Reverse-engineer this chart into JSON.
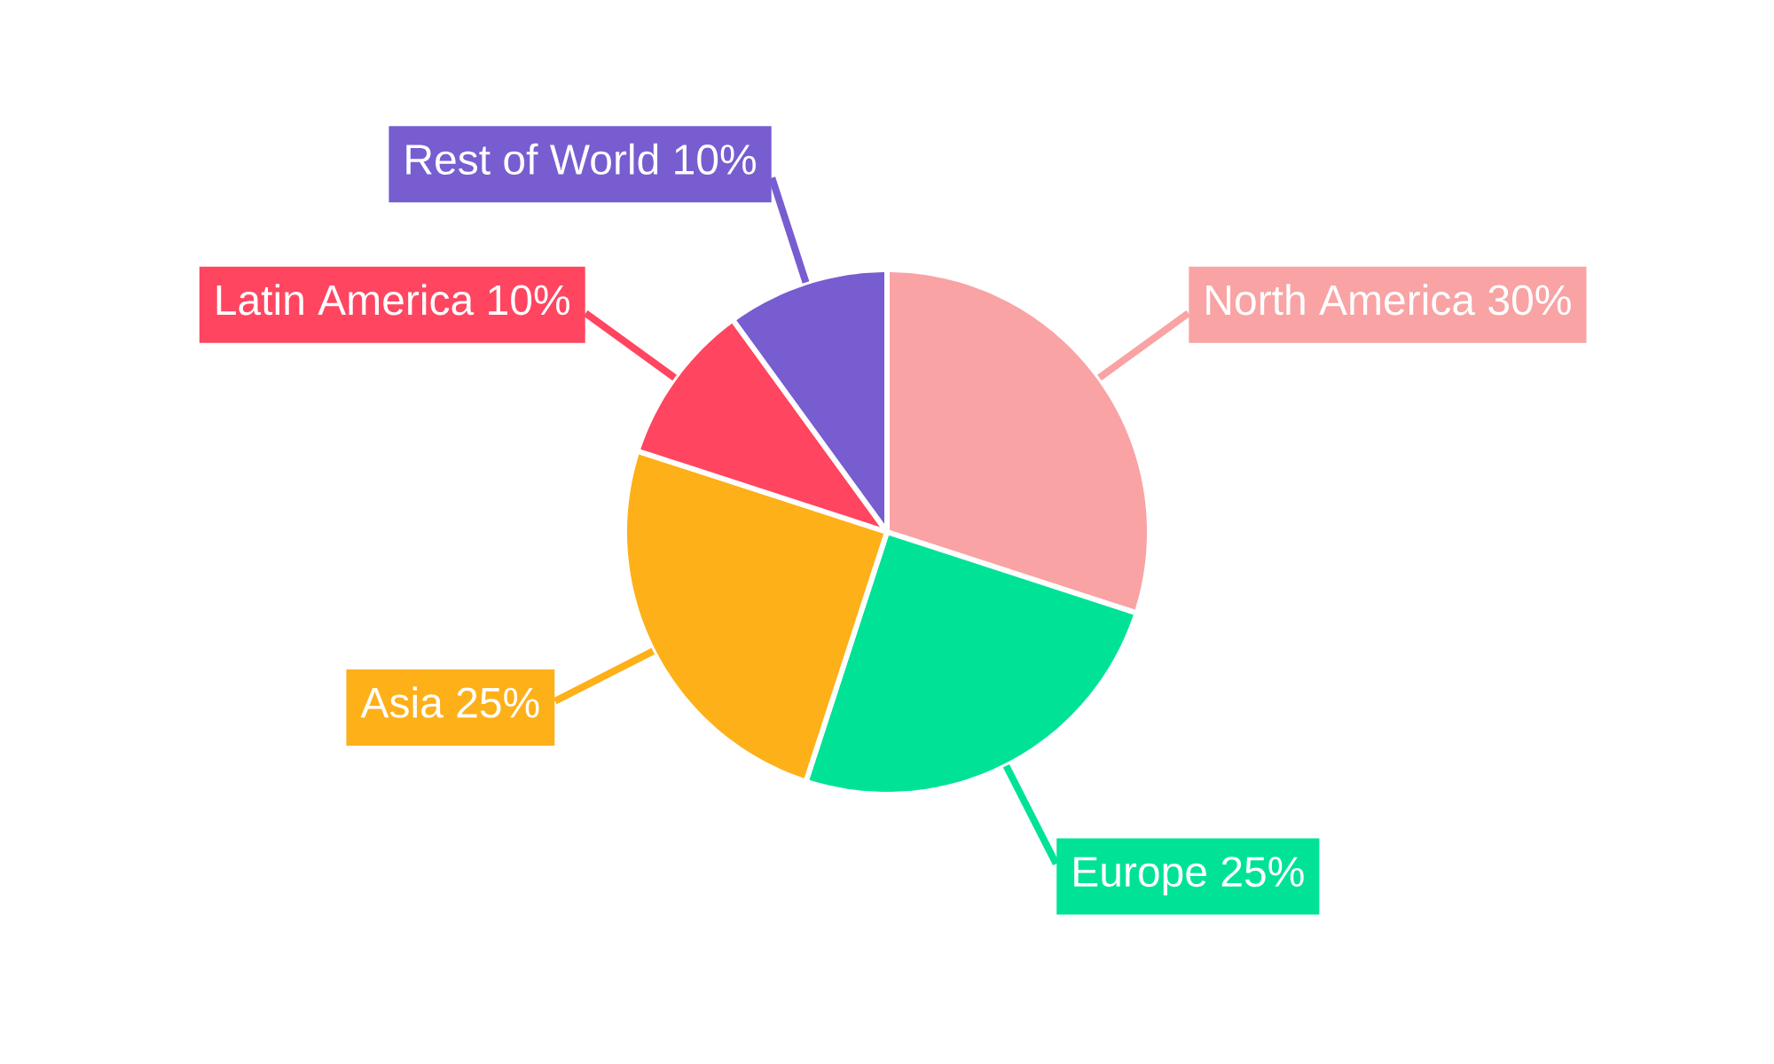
{
  "chart_data": {
    "type": "pie",
    "categories": [
      "North America",
      "Europe",
      "Asia",
      "Latin America",
      "Rest of World"
    ],
    "values": [
      30,
      25,
      25,
      10,
      10
    ],
    "colors": [
      "#f9a3a4",
      "#00e396",
      "#feb019",
      "#ff4560",
      "#775dd0"
    ],
    "value_labels": [
      "30%",
      "25%",
      "25%",
      "10%",
      "10%"
    ]
  }
}
